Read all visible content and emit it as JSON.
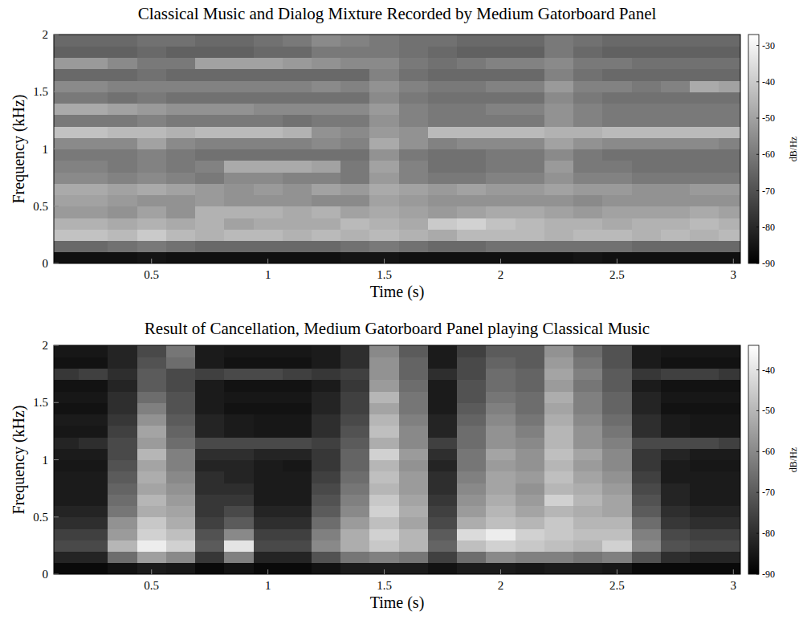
{
  "chart_data": [
    {
      "type": "heatmap",
      "title": "Classical Music and Dialog Mixture Recorded by Medium Gatorboard Panel",
      "x_label": "Time (s)",
      "y_label": "Frequency (kHz)",
      "x": [
        0.125,
        0.25,
        0.375,
        0.5,
        0.625,
        0.75,
        0.875,
        1.0,
        1.125,
        1.25,
        1.375,
        1.5,
        1.625,
        1.75,
        1.875,
        2.0,
        2.125,
        2.25,
        2.375,
        2.5,
        2.625,
        2.75,
        2.875,
        3.0
      ],
      "y": [
        0.05,
        0.15,
        0.25,
        0.35,
        0.45,
        0.55,
        0.65,
        0.75,
        0.85,
        0.95,
        1.05,
        1.15,
        1.25,
        1.35,
        1.45,
        1.55,
        1.65,
        1.75,
        1.85,
        1.95
      ],
      "values": [
        [
          -86,
          -86,
          -86,
          -85,
          -86,
          -86,
          -86,
          -86,
          -86,
          -86,
          -85,
          -85,
          -86,
          -86,
          -86,
          -86,
          -86,
          -86,
          -85,
          -86,
          -86,
          -86,
          -86,
          -86
        ],
        [
          -64,
          -64,
          -62,
          -60,
          -62,
          -64,
          -64,
          -64,
          -64,
          -64,
          -62,
          -60,
          -62,
          -64,
          -64,
          -62,
          -62,
          -62,
          -62,
          -62,
          -64,
          -64,
          -64,
          -64
        ],
        [
          -42,
          -42,
          -44,
          -40,
          -44,
          -46,
          -44,
          -44,
          -46,
          -44,
          -46,
          -44,
          -46,
          -48,
          -44,
          -44,
          -44,
          -46,
          -44,
          -44,
          -46,
          -44,
          -46,
          -44
        ],
        [
          -46,
          -46,
          -48,
          -46,
          -48,
          -46,
          -50,
          -48,
          -48,
          -48,
          -44,
          -46,
          -48,
          -40,
          -38,
          -42,
          -44,
          -46,
          -46,
          -48,
          -46,
          -46,
          -44,
          -46
        ],
        [
          -52,
          -52,
          -54,
          -50,
          -54,
          -46,
          -46,
          -46,
          -48,
          -46,
          -50,
          -48,
          -50,
          -52,
          -50,
          -48,
          -48,
          -50,
          -52,
          -50,
          -50,
          -50,
          -48,
          -50
        ],
        [
          -50,
          -50,
          -52,
          -54,
          -54,
          -52,
          -54,
          -54,
          -54,
          -56,
          -56,
          -50,
          -52,
          -54,
          -54,
          -54,
          -54,
          -54,
          -56,
          -54,
          -54,
          -54,
          -54,
          -54
        ],
        [
          -48,
          -48,
          -50,
          -48,
          -50,
          -52,
          -54,
          -52,
          -54,
          -50,
          -52,
          -48,
          -50,
          -52,
          -50,
          -52,
          -52,
          -50,
          -52,
          -52,
          -54,
          -54,
          -52,
          -52
        ],
        [
          -56,
          -56,
          -58,
          -56,
          -58,
          -60,
          -56,
          -56,
          -58,
          -58,
          -60,
          -52,
          -58,
          -60,
          -60,
          -58,
          -58,
          -54,
          -58,
          -58,
          -60,
          -60,
          -60,
          -60
        ],
        [
          -58,
          -58,
          -60,
          -58,
          -60,
          -58,
          -48,
          -48,
          -48,
          -50,
          -60,
          -50,
          -58,
          -62,
          -62,
          -60,
          -60,
          -52,
          -60,
          -60,
          -62,
          -62,
          -62,
          -62
        ],
        [
          -60,
          -60,
          -60,
          -58,
          -60,
          -62,
          -62,
          -62,
          -62,
          -62,
          -62,
          -54,
          -60,
          -62,
          -62,
          -60,
          -60,
          -56,
          -60,
          -62,
          -62,
          -62,
          -62,
          -62
        ],
        [
          -56,
          -56,
          -56,
          -50,
          -56,
          -58,
          -58,
          -58,
          -58,
          -56,
          -58,
          -48,
          -54,
          -58,
          -56,
          -56,
          -56,
          -50,
          -54,
          -56,
          -56,
          -56,
          -56,
          -58
        ],
        [
          -42,
          -42,
          -44,
          -44,
          -46,
          -44,
          -44,
          -44,
          -46,
          -54,
          -56,
          -52,
          -54,
          -44,
          -44,
          -44,
          -44,
          -46,
          -46,
          -44,
          -44,
          -44,
          -44,
          -44
        ],
        [
          -60,
          -60,
          -60,
          -58,
          -60,
          -60,
          -60,
          -60,
          -62,
          -60,
          -60,
          -54,
          -58,
          -60,
          -60,
          -60,
          -60,
          -54,
          -58,
          -60,
          -60,
          -60,
          -60,
          -60
        ],
        [
          -48,
          -48,
          -50,
          -52,
          -54,
          -54,
          -54,
          -56,
          -56,
          -56,
          -56,
          -52,
          -58,
          -60,
          -60,
          -58,
          -58,
          -54,
          -58,
          -60,
          -60,
          -60,
          -60,
          -60
        ],
        [
          -60,
          -60,
          -62,
          -60,
          -62,
          -62,
          -62,
          -62,
          -62,
          -62,
          -62,
          -56,
          -60,
          -62,
          -62,
          -62,
          -62,
          -56,
          -60,
          -62,
          -62,
          -62,
          -62,
          -62
        ],
        [
          -56,
          -56,
          -58,
          -58,
          -58,
          -58,
          -58,
          -58,
          -58,
          -56,
          -58,
          -54,
          -58,
          -60,
          -60,
          -58,
          -58,
          -52,
          -58,
          -58,
          -60,
          -58,
          -48,
          -50
        ],
        [
          -64,
          -64,
          -64,
          -62,
          -64,
          -64,
          -64,
          -64,
          -64,
          -64,
          -64,
          -58,
          -62,
          -64,
          -64,
          -64,
          -64,
          -58,
          -62,
          -64,
          -64,
          -64,
          -64,
          -64
        ],
        [
          -52,
          -52,
          -56,
          -60,
          -60,
          -50,
          -50,
          -50,
          -52,
          -54,
          -56,
          -56,
          -60,
          -62,
          -60,
          -58,
          -58,
          -56,
          -60,
          -60,
          -62,
          -62,
          -62,
          -62
        ],
        [
          -66,
          -66,
          -66,
          -64,
          -66,
          -66,
          -66,
          -64,
          -64,
          -60,
          -60,
          -60,
          -62,
          -64,
          -66,
          -66,
          -66,
          -60,
          -64,
          -66,
          -66,
          -66,
          -66,
          -66
        ],
        [
          -64,
          -64,
          -64,
          -62,
          -62,
          -64,
          -64,
          -62,
          -60,
          -56,
          -58,
          -60,
          -62,
          -62,
          -64,
          -64,
          -64,
          -60,
          -62,
          -64,
          -64,
          -64,
          -64,
          -64
        ]
      ],
      "xlim": [
        0.08,
        3.03
      ],
      "xticks": [
        0.5,
        1,
        1.5,
        2,
        2.5,
        3
      ],
      "ylim": [
        0,
        2
      ],
      "yticks": [
        0,
        0.5,
        1,
        1.5,
        2
      ],
      "colorbar_range": [
        -90,
        -27
      ],
      "colorbar_ticks": [
        -30,
        -40,
        -50,
        -60,
        -70,
        -80,
        -90
      ],
      "colorbar_label": "dB/Hz"
    },
    {
      "type": "heatmap",
      "title": "Result of Cancellation, Medium Gatorboard Panel playing Classical Music",
      "x_label": "Time (s)",
      "y_label": "Frequency (kHz)",
      "x": [
        0.125,
        0.25,
        0.375,
        0.5,
        0.625,
        0.75,
        0.875,
        1.0,
        1.125,
        1.25,
        1.375,
        1.5,
        1.625,
        1.75,
        1.875,
        2.0,
        2.125,
        2.25,
        2.375,
        2.5,
        2.625,
        2.75,
        2.875,
        3.0
      ],
      "y": [
        0.05,
        0.15,
        0.25,
        0.35,
        0.45,
        0.55,
        0.65,
        0.75,
        0.85,
        0.95,
        1.05,
        1.15,
        1.25,
        1.35,
        1.45,
        1.55,
        1.65,
        1.75,
        1.85,
        1.95
      ],
      "values": [
        [
          -88,
          -88,
          -86,
          -84,
          -85,
          -88,
          -86,
          -88,
          -88,
          -86,
          -84,
          -84,
          -84,
          -86,
          -84,
          -84,
          -85,
          -84,
          -84,
          -85,
          -88,
          -88,
          -88,
          -88
        ],
        [
          -82,
          -82,
          -66,
          -55,
          -60,
          -78,
          -62,
          -82,
          -82,
          -72,
          -64,
          -62,
          -64,
          -76,
          -66,
          -60,
          -62,
          -62,
          -64,
          -62,
          -72,
          -80,
          -82,
          -82
        ],
        [
          -74,
          -74,
          -50,
          -38,
          -44,
          -70,
          -40,
          -74,
          -74,
          -60,
          -52,
          -46,
          -50,
          -68,
          -48,
          -44,
          -46,
          -48,
          -50,
          -44,
          -60,
          -72,
          -74,
          -74
        ],
        [
          -76,
          -76,
          -56,
          -44,
          -48,
          -72,
          -60,
          -76,
          -76,
          -62,
          -52,
          -44,
          -50,
          -70,
          -42,
          -38,
          -44,
          -46,
          -48,
          -48,
          -62,
          -74,
          -76,
          -76
        ],
        [
          -80,
          -80,
          -58,
          -46,
          -52,
          -76,
          -70,
          -80,
          -80,
          -66,
          -56,
          -48,
          -54,
          -74,
          -52,
          -48,
          -50,
          -46,
          -50,
          -50,
          -66,
          -78,
          -80,
          -80
        ],
        [
          -82,
          -82,
          -64,
          -52,
          -54,
          -78,
          -74,
          -82,
          -82,
          -70,
          -60,
          -44,
          -52,
          -76,
          -56,
          -50,
          -54,
          -50,
          -52,
          -54,
          -70,
          -80,
          -82,
          -82
        ],
        [
          -84,
          -84,
          -66,
          -50,
          -56,
          -78,
          -78,
          -84,
          -84,
          -72,
          -62,
          -46,
          -54,
          -78,
          -58,
          -52,
          -56,
          -44,
          -50,
          -54,
          -72,
          -82,
          -84,
          -84
        ],
        [
          -84,
          -84,
          -68,
          -54,
          -58,
          -80,
          -80,
          -84,
          -84,
          -74,
          -64,
          -50,
          -56,
          -80,
          -60,
          -54,
          -58,
          -50,
          -52,
          -56,
          -74,
          -82,
          -84,
          -84
        ],
        [
          -84,
          -84,
          -70,
          -52,
          -60,
          -80,
          -82,
          -84,
          -84,
          -76,
          -66,
          -48,
          -56,
          -80,
          -62,
          -54,
          -56,
          -48,
          -54,
          -58,
          -76,
          -84,
          -84,
          -84
        ],
        [
          -85,
          -85,
          -72,
          -54,
          -62,
          -82,
          -82,
          -84,
          -85,
          -78,
          -68,
          -50,
          -58,
          -82,
          -64,
          -56,
          -58,
          -50,
          -56,
          -60,
          -78,
          -84,
          -85,
          -85
        ],
        [
          -84,
          -84,
          -74,
          -50,
          -62,
          -80,
          -80,
          -82,
          -82,
          -78,
          -68,
          -44,
          -56,
          -80,
          -64,
          -54,
          -58,
          -48,
          -54,
          -60,
          -78,
          -82,
          -84,
          -84
        ],
        [
          -82,
          -80,
          -74,
          -56,
          -66,
          -74,
          -74,
          -74,
          -74,
          -76,
          -70,
          -52,
          -60,
          -76,
          -66,
          -58,
          -60,
          -50,
          -58,
          -62,
          -74,
          -74,
          -74,
          -76
        ],
        [
          -85,
          -85,
          -76,
          -54,
          -68,
          -82,
          -84,
          -85,
          -85,
          -80,
          -72,
          -48,
          -60,
          -82,
          -66,
          -58,
          -62,
          -50,
          -58,
          -64,
          -80,
          -84,
          -85,
          -85
        ],
        [
          -84,
          -84,
          -78,
          -58,
          -70,
          -82,
          -84,
          -85,
          -85,
          -80,
          -74,
          -50,
          -62,
          -82,
          -68,
          -60,
          -64,
          -52,
          -60,
          -66,
          -80,
          -84,
          -85,
          -85
        ],
        [
          -86,
          -86,
          -80,
          -62,
          -72,
          -84,
          -86,
          -86,
          -86,
          -82,
          -76,
          -54,
          -64,
          -84,
          -70,
          -62,
          -66,
          -54,
          -62,
          -68,
          -82,
          -86,
          -86,
          -86
        ],
        [
          -85,
          -85,
          -80,
          -66,
          -72,
          -84,
          -85,
          -85,
          -85,
          -82,
          -76,
          -50,
          -64,
          -84,
          -72,
          -64,
          -66,
          -52,
          -62,
          -68,
          -82,
          -85,
          -85,
          -85
        ],
        [
          -86,
          -86,
          -82,
          -70,
          -74,
          -84,
          -86,
          -86,
          -86,
          -84,
          -78,
          -56,
          -66,
          -84,
          -72,
          -66,
          -68,
          -56,
          -64,
          -70,
          -84,
          -86,
          -86,
          -86
        ],
        [
          -78,
          -76,
          -80,
          -70,
          -74,
          -76,
          -74,
          -74,
          -76,
          -78,
          -76,
          -58,
          -68,
          -80,
          -74,
          -66,
          -68,
          -54,
          -62,
          -70,
          -78,
          -76,
          -76,
          -78
        ],
        [
          -86,
          -86,
          -82,
          -72,
          -66,
          -84,
          -86,
          -86,
          -86,
          -84,
          -80,
          -58,
          -68,
          -84,
          -74,
          -68,
          -70,
          -56,
          -64,
          -72,
          -84,
          -86,
          -86,
          -86
        ],
        [
          -85,
          -85,
          -82,
          -74,
          -64,
          -84,
          -85,
          -85,
          -85,
          -84,
          -80,
          -60,
          -70,
          -84,
          -76,
          -70,
          -70,
          -58,
          -66,
          -72,
          -84,
          -85,
          -85,
          -85
        ]
      ],
      "xlim": [
        0.08,
        3.03
      ],
      "xticks": [
        0.5,
        1,
        1.5,
        2,
        2.5,
        3
      ],
      "ylim": [
        0,
        2
      ],
      "yticks": [
        0,
        0.5,
        1,
        1.5,
        2
      ],
      "colorbar_range": [
        -90,
        -34
      ],
      "colorbar_ticks": [
        -40,
        -50,
        -60,
        -70,
        -80,
        -90
      ],
      "colorbar_label": "dB/Hz"
    }
  ]
}
